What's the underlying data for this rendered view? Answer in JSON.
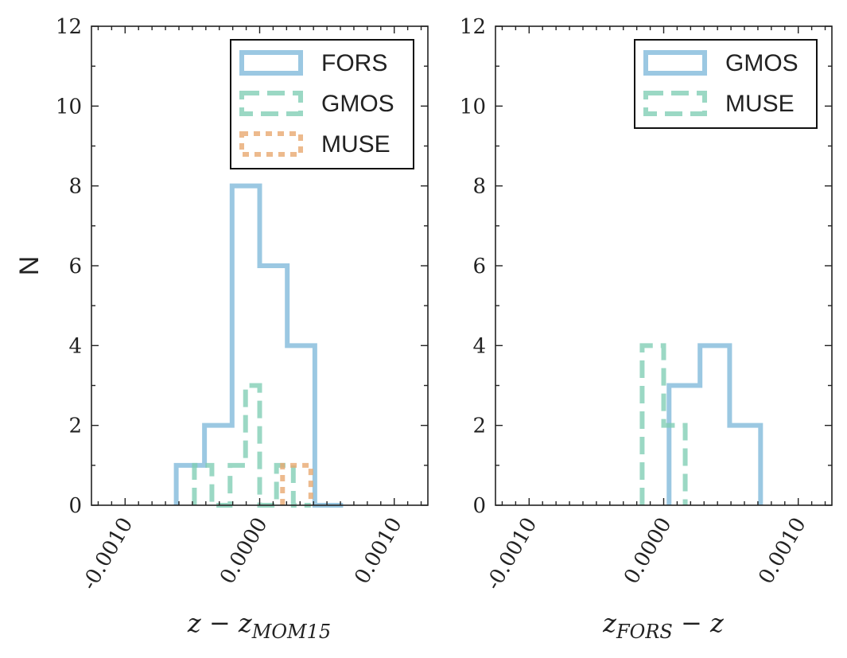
{
  "chart_data": [
    {
      "type": "histogram-step",
      "ylabel": "N",
      "xlabel": "z − z_MOM15",
      "xlabel_main": "z − z",
      "xlabel_sub": "MOM15",
      "xlim": [
        -0.00125,
        0.00125
      ],
      "ylim": [
        0,
        12
      ],
      "yticks": [
        0,
        2,
        4,
        6,
        8,
        10,
        12
      ],
      "xticks": [
        -0.001,
        0.0,
        0.001
      ],
      "xtick_labels": [
        "-0.0010",
        "0.0000",
        "0.0010"
      ],
      "legend_position": "top-right",
      "series": [
        {
          "name": "FORS",
          "style": "solid",
          "color": "#7fb8da",
          "edges": [
            -0.00062,
            -0.00041,
            -0.000205,
            0.0,
            0.000205,
            0.00041,
            0.00062
          ],
          "counts": [
            1,
            2,
            8,
            6,
            4,
            0
          ]
        },
        {
          "name": "GMOS",
          "style": "dashed",
          "color": "#7fcdb4",
          "edges": [
            -0.000485,
            -0.000355,
            -0.00022,
            -0.000105,
            0.0,
            0.000125,
            0.00025,
            0.00038
          ],
          "counts": [
            1,
            0,
            1,
            3,
            0,
            1,
            0
          ]
        },
        {
          "name": "MUSE",
          "style": "dotted",
          "color": "#e8a76d",
          "edges": [
            0.00017,
            0.00038
          ],
          "counts": [
            1
          ]
        }
      ]
    },
    {
      "type": "histogram-step",
      "ylabel": "",
      "xlabel": "z_FORS − z",
      "xlabel_main_a": "z",
      "xlabel_sub": "FORS",
      "xlabel_main_b": " − z",
      "xlim": [
        -0.00125,
        0.00125
      ],
      "ylim": [
        0,
        12
      ],
      "yticks": [
        0,
        2,
        4,
        6,
        8,
        10,
        12
      ],
      "xticks": [
        -0.001,
        0.0,
        0.001
      ],
      "xtick_labels": [
        "-0.0010",
        "0.0000",
        "0.0010"
      ],
      "legend_position": "top-right",
      "series": [
        {
          "name": "GMOS",
          "style": "solid",
          "color": "#7fb8da",
          "edges": [
            4e-05,
            0.00027,
            0.00049,
            0.00072
          ],
          "counts": [
            3,
            4,
            2
          ]
        },
        {
          "name": "MUSE",
          "style": "dashed",
          "color": "#7fcdb4",
          "edges": [
            -0.00016,
            0.0,
            0.00016
          ],
          "counts": [
            4,
            2
          ]
        }
      ]
    }
  ]
}
